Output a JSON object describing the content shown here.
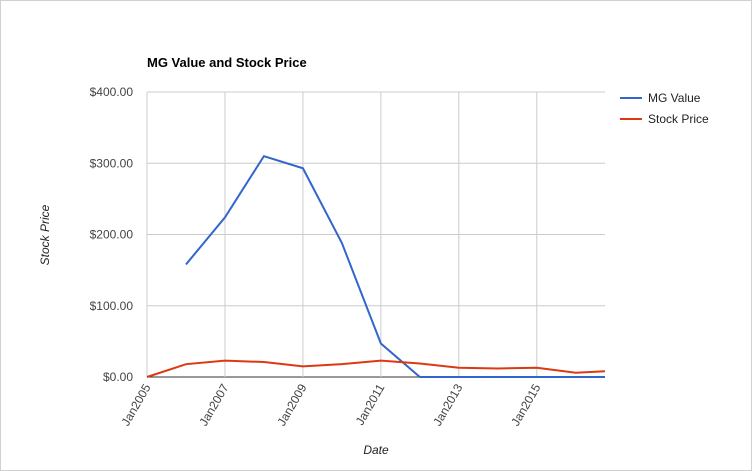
{
  "chart_data": {
    "type": "line",
    "title": "MG Value and Stock Price",
    "x_label": "Date",
    "y_label": "Stock Price",
    "x": [
      "2005-01",
      "2006-01",
      "2007-01",
      "2008-01",
      "2009-01",
      "2010-01",
      "2011-01",
      "2012-01",
      "2013-01",
      "2014-01",
      "2015-01",
      "2016-01",
      "2016-10"
    ],
    "series": [
      {
        "name": "MG Value",
        "color": "#3366cc",
        "values": [
          null,
          158,
          224,
          310,
          293,
          188,
          47,
          0,
          0,
          0,
          0,
          0,
          0
        ]
      },
      {
        "name": "Stock Price",
        "color": "#dc3912",
        "values": [
          0,
          18,
          23,
          21,
          15,
          18,
          23,
          19,
          13,
          12,
          13,
          6,
          8
        ]
      }
    ],
    "xlim": [
      "2005-01",
      "2016-10"
    ],
    "xticks": [
      {
        "value": "2005-01",
        "label": "Jan2005"
      },
      {
        "value": "2007-01",
        "label": "Jan2007"
      },
      {
        "value": "2009-01",
        "label": "Jan2009"
      },
      {
        "value": "2011-01",
        "label": "Jan2011"
      },
      {
        "value": "2013-01",
        "label": "Jan2013"
      },
      {
        "value": "2015-01",
        "label": "Jan2015"
      }
    ],
    "ylim": [
      0,
      400
    ],
    "yticks": [
      {
        "value": 0,
        "label": "$0.00"
      },
      {
        "value": 100,
        "label": "$100.00"
      },
      {
        "value": 200,
        "label": "$200.00"
      },
      {
        "value": 300,
        "label": "$300.00"
      },
      {
        "value": 400,
        "label": "$400.00"
      }
    ],
    "grid": true,
    "legend": "right"
  }
}
